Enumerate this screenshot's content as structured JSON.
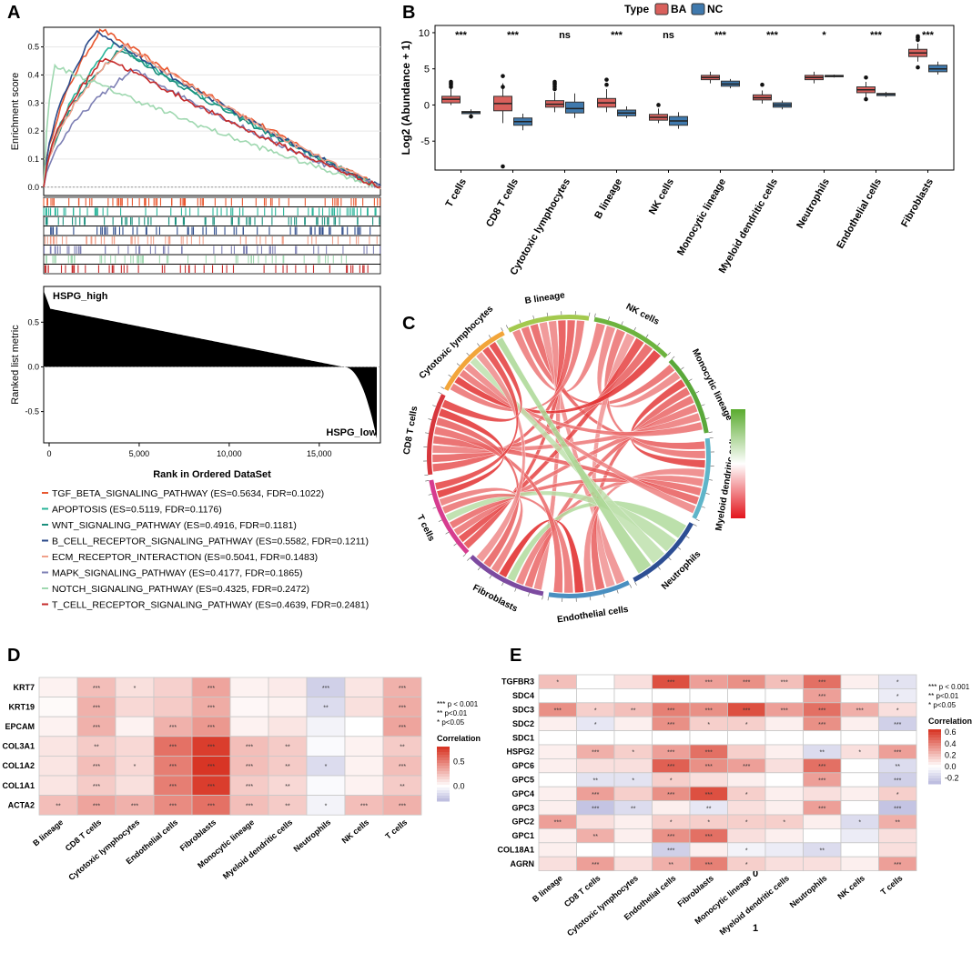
{
  "panels": {
    "A": "A",
    "B": "B",
    "C": "C",
    "D": "D",
    "E": "E"
  },
  "colors": {
    "BA": "#d9605c",
    "NC": "#3f79ad",
    "heat_high": "#d7301f",
    "heat_mid": "#ffffff",
    "heat_low": "#b8b8dd",
    "pathways": [
      "#e8572f",
      "#2ab59a",
      "#1a8f7c",
      "#2b4a8a",
      "#f0a08a",
      "#7d7fb4",
      "#9fd8b0",
      "#c62b2b"
    ]
  },
  "chart_data": [
    {
      "id": "A",
      "type": "line",
      "ylabel_top": "Enrichment score",
      "ylabel_bottom": "Ranked list metric",
      "xlabel": "Rank in Ordered DataSet",
      "x_ticks": [
        "0",
        "5,000",
        "10,000",
        "15,000"
      ],
      "x_tick_values": [
        0,
        5000,
        10000,
        15000
      ],
      "xlim": [
        0,
        18700
      ],
      "es_ticks": [
        "0.0",
        "0.1",
        "0.2",
        "0.3",
        "0.4",
        "0.5"
      ],
      "es_tick_values": [
        0,
        0.1,
        0.2,
        0.3,
        0.4,
        0.5
      ],
      "es_ylim": [
        -0.03,
        0.57
      ],
      "metric_ticks": [
        "0.5",
        "0.0",
        "-0.5"
      ],
      "metric_tick_values": [
        0.5,
        0.0,
        -0.5
      ],
      "metric_ylim": [
        -0.85,
        0.9
      ],
      "high_label": "HSPG_high",
      "low_label": "HSPG_low",
      "pathways": [
        {
          "label": "TGF_BETA_SIGNALING_PATHWAY (ES=0.5634, FDR=0.1022)",
          "peak": 0.5634,
          "peak_rank": 3200
        },
        {
          "label": "APOPTOSIS (ES=0.5119, FDR=0.1176)",
          "peak": 0.5119,
          "peak_rank": 3900
        },
        {
          "label": "WNT_SIGNALING_PATHWAY (ES=0.4916, FDR=0.1181)",
          "peak": 0.4916,
          "peak_rank": 4200
        },
        {
          "label": "B_CELL_RECEPTOR_SIGNALING_PATHWAY (ES=0.5582, FDR=0.1211)",
          "peak": 0.5582,
          "peak_rank": 2900
        },
        {
          "label": "ECM_RECEPTOR_INTERACTION (ES=0.5041, FDR=0.1483)",
          "peak": 0.5041,
          "peak_rank": 4500
        },
        {
          "label": "MAPK_SIGNALING_PATHWAY (ES=0.4177, FDR=0.1865)",
          "peak": 0.4177,
          "peak_rank": 5000
        },
        {
          "label": "NOTCH_SIGNALING_PATHWAY (ES=0.4325, FDR=0.2472)",
          "peak": 0.4325,
          "peak_rank": 600
        },
        {
          "label": "T_CELL_RECEPTOR_SIGNALING_PATHWAY (ES=0.4639, FDR=0.2481)",
          "peak": 0.4639,
          "peak_rank": 3400
        }
      ]
    },
    {
      "id": "B",
      "type": "box",
      "legend_title": "Type",
      "groups": [
        "BA",
        "NC"
      ],
      "ylabel": "Log2 (Abundance + 1)",
      "y_ticks": [
        "10",
        "5",
        "0",
        "-5"
      ],
      "y_tick_values": [
        10,
        5,
        0,
        -5
      ],
      "ylim": [
        -9,
        11
      ],
      "categories": [
        "T cells",
        "CD8 T cells",
        "Cytotoxic lymphocytes",
        "B lineage",
        "NK cells",
        "Monocytic lineage",
        "Myeloid dendritic cells",
        "Neutrophils",
        "Endothelial cells",
        "Fibroblasts"
      ],
      "significance": [
        "***",
        "***",
        "ns",
        "***",
        "ns",
        "***",
        "***",
        "*",
        "***",
        "***"
      ],
      "BA": [
        {
          "min": 0.0,
          "q1": 0.3,
          "med": 0.8,
          "q3": 1.2,
          "max": 2.2,
          "out": [
            2.5,
            2.8,
            3.0,
            3.2
          ]
        },
        {
          "min": -2.5,
          "q1": -0.8,
          "med": 0.2,
          "q3": 1.2,
          "max": 3.0,
          "out": [
            4.0,
            2.5,
            -8.5
          ]
        },
        {
          "min": -1.0,
          "q1": -0.3,
          "med": 0.1,
          "q3": 0.6,
          "max": 1.8,
          "out": [
            2.2,
            2.5,
            2.8,
            3.0,
            3.2
          ]
        },
        {
          "min": -1.0,
          "q1": -0.3,
          "med": 0.3,
          "q3": 0.9,
          "max": 2.2,
          "out": [
            2.8,
            3.5
          ]
        },
        {
          "min": -2.5,
          "q1": -2.1,
          "med": -1.7,
          "q3": -1.3,
          "max": -0.5,
          "out": [
            0.0
          ]
        },
        {
          "min": 3.0,
          "q1": 3.5,
          "med": 3.8,
          "q3": 4.1,
          "max": 4.6,
          "out": []
        },
        {
          "min": 0.2,
          "q1": 0.7,
          "med": 1.0,
          "q3": 1.4,
          "max": 2.0,
          "out": [
            2.8
          ]
        },
        {
          "min": 3.0,
          "q1": 3.5,
          "med": 3.8,
          "q3": 4.1,
          "max": 4.6,
          "out": []
        },
        {
          "min": 1.0,
          "q1": 1.7,
          "med": 2.1,
          "q3": 2.5,
          "max": 3.2,
          "out": [
            3.8,
            0.8
          ]
        },
        {
          "min": 6.0,
          "q1": 6.7,
          "med": 7.2,
          "q3": 7.7,
          "max": 8.5,
          "out": [
            9.0,
            9.3,
            9.5,
            5.2
          ]
        }
      ],
      "NC": [
        {
          "min": -1.4,
          "q1": -1.2,
          "med": -1.0,
          "q3": -0.9,
          "max": -0.6,
          "out": [
            -1.6
          ]
        },
        {
          "min": -3.5,
          "q1": -2.8,
          "med": -2.3,
          "q3": -1.8,
          "max": -1.2,
          "out": []
        },
        {
          "min": -1.8,
          "q1": -1.1,
          "med": -0.5,
          "q3": 0.4,
          "max": 1.6,
          "out": []
        },
        {
          "min": -1.8,
          "q1": -1.5,
          "med": -1.1,
          "q3": -0.7,
          "max": -0.2,
          "out": []
        },
        {
          "min": -3.3,
          "q1": -2.8,
          "med": -2.2,
          "q3": -1.6,
          "max": -1.0,
          "out": []
        },
        {
          "min": 2.3,
          "q1": 2.6,
          "med": 2.9,
          "q3": 3.3,
          "max": 3.6,
          "out": []
        },
        {
          "min": -0.6,
          "q1": -0.3,
          "med": 0.0,
          "q3": 0.3,
          "max": 0.6,
          "out": []
        },
        {
          "min": 3.8,
          "q1": 3.9,
          "med": 4.0,
          "q3": 4.1,
          "max": 4.2,
          "out": []
        },
        {
          "min": 1.1,
          "q1": 1.3,
          "med": 1.5,
          "q3": 1.6,
          "max": 1.8,
          "out": []
        },
        {
          "min": 4.2,
          "q1": 4.6,
          "med": 5.0,
          "q3": 5.5,
          "max": 6.0,
          "out": []
        }
      ]
    },
    {
      "id": "C",
      "type": "chord",
      "sectors": [
        "B lineage",
        "NK cells",
        "Monocytic lineage",
        "Myeloid dendritic cells",
        "Neutrophils",
        "Endothelial cells",
        "Fibroblasts",
        "T cells",
        "CD8 T cells",
        "Cytotoxic lymphocytes"
      ],
      "sector_colors": [
        "#a3c94e",
        "#6db33f",
        "#5aa83a",
        "#5fb5c9",
        "#2d4e93",
        "#4a8fc0",
        "#7c4aa0",
        "#d63c8f",
        "#d7373d",
        "#f2a53a"
      ],
      "legend_ticks": [
        "-1",
        "0",
        "1"
      ],
      "legend_tick_values": [
        -1,
        0,
        1
      ],
      "correlations": [
        {
          "from": 0,
          "to": 1,
          "r": 0.45
        },
        {
          "from": 0,
          "to": 2,
          "r": 0.55
        },
        {
          "from": 0,
          "to": 3,
          "r": 0.6
        },
        {
          "from": 0,
          "to": 5,
          "r": 0.35
        },
        {
          "from": 0,
          "to": 6,
          "r": 0.4
        },
        {
          "from": 0,
          "to": 7,
          "r": 0.7
        },
        {
          "from": 0,
          "to": 8,
          "r": 0.65
        },
        {
          "from": 0,
          "to": 9,
          "r": 0.5
        },
        {
          "from": 1,
          "to": 2,
          "r": 0.4
        },
        {
          "from": 1,
          "to": 3,
          "r": 0.5
        },
        {
          "from": 1,
          "to": 5,
          "r": 0.3
        },
        {
          "from": 1,
          "to": 7,
          "r": 0.75
        },
        {
          "from": 1,
          "to": 8,
          "r": 0.6
        },
        {
          "from": 1,
          "to": 9,
          "r": 0.85
        },
        {
          "from": 2,
          "to": 3,
          "r": 0.8
        },
        {
          "from": 2,
          "to": 5,
          "r": 0.6
        },
        {
          "from": 2,
          "to": 6,
          "r": 0.55
        },
        {
          "from": 2,
          "to": 7,
          "r": 0.5
        },
        {
          "from": 2,
          "to": 8,
          "r": 0.45
        },
        {
          "from": 2,
          "to": 9,
          "r": 0.5
        },
        {
          "from": 3,
          "to": 5,
          "r": 0.4
        },
        {
          "from": 3,
          "to": 6,
          "r": 0.45
        },
        {
          "from": 3,
          "to": 7,
          "r": 0.55
        },
        {
          "from": 3,
          "to": 8,
          "r": 0.6
        },
        {
          "from": 3,
          "to": 9,
          "r": 0.4
        },
        {
          "from": 4,
          "to": 6,
          "r": -0.3
        },
        {
          "from": 4,
          "to": 7,
          "r": -0.25
        },
        {
          "from": 4,
          "to": 9,
          "r": -0.2
        },
        {
          "from": 5,
          "to": 6,
          "r": 0.9
        },
        {
          "from": 5,
          "to": 7,
          "r": 0.5
        },
        {
          "from": 5,
          "to": 8,
          "r": 0.55
        },
        {
          "from": 6,
          "to": 7,
          "r": 0.45
        },
        {
          "from": 6,
          "to": 8,
          "r": 0.6
        },
        {
          "from": 6,
          "to": 9,
          "r": 0.35
        },
        {
          "from": 7,
          "to": 8,
          "r": 0.85
        },
        {
          "from": 7,
          "to": 9,
          "r": 0.75
        },
        {
          "from": 8,
          "to": 9,
          "r": 0.8
        },
        {
          "from": 9,
          "to": 4,
          "r": -0.35
        }
      ]
    },
    {
      "id": "D",
      "type": "heatmap",
      "rows": [
        "KRT7",
        "KRT19",
        "EPCAM",
        "COL3A1",
        "COL1A2",
        "COL1A1",
        "ACTA2"
      ],
      "cols": [
        "B lineage",
        "CD8 T cells",
        "Cytotoxic lymphocytes",
        "Endothelial cells",
        "Fibroblasts",
        "Monocytic lineage",
        "Myeloid dendritic cells",
        "Neutrophils",
        "NK cells",
        "T cells"
      ],
      "values": [
        [
          0.05,
          0.25,
          0.12,
          0.18,
          0.35,
          0.05,
          0.08,
          -0.2,
          0.1,
          0.3
        ],
        [
          0.02,
          0.3,
          0.15,
          0.2,
          0.32,
          0.03,
          0.05,
          -0.15,
          0.12,
          0.32
        ],
        [
          0.05,
          0.3,
          0.05,
          0.3,
          0.4,
          0.05,
          0.1,
          -0.05,
          0.0,
          0.35
        ],
        [
          0.1,
          0.2,
          0.15,
          0.55,
          0.75,
          0.25,
          0.2,
          -0.02,
          0.05,
          0.2
        ],
        [
          0.1,
          0.25,
          0.15,
          0.5,
          0.78,
          0.25,
          0.2,
          -0.15,
          0.05,
          0.25
        ],
        [
          0.1,
          0.2,
          0.12,
          0.5,
          0.75,
          0.2,
          0.15,
          -0.02,
          0.05,
          0.2
        ],
        [
          0.25,
          0.35,
          0.3,
          0.45,
          0.55,
          0.25,
          0.2,
          -0.05,
          0.25,
          0.3
        ]
      ],
      "stars": [
        [
          "",
          "***",
          "*",
          "",
          "***",
          "",
          "",
          "***",
          "",
          "***"
        ],
        [
          "",
          "***",
          "",
          "",
          "***",
          "",
          "",
          "**",
          "",
          "***"
        ],
        [
          "",
          "***",
          "",
          "***",
          "***",
          "",
          "",
          "",
          "",
          "***"
        ],
        [
          "",
          "**",
          "",
          "***",
          "***",
          "***",
          "**",
          "",
          "",
          "**"
        ],
        [
          "",
          "***",
          "*",
          "***",
          "***",
          "***",
          "**",
          "*",
          "",
          "***"
        ],
        [
          "",
          "***",
          "",
          "***",
          "***",
          "***",
          "**",
          "",
          "",
          "**"
        ],
        [
          "**",
          "***",
          "***",
          "***",
          "***",
          "***",
          "**",
          "*",
          "***",
          "***"
        ]
      ],
      "sig_legend": [
        "*** p < 0.001",
        "** p<0.01",
        "* p<0.05"
      ],
      "legend_title": "Correlation",
      "legend_ticks": [
        "0.5",
        "0.0"
      ],
      "legend_tick_values": [
        0.5,
        0.0
      ],
      "vlim": [
        -0.3,
        0.8
      ]
    },
    {
      "id": "E",
      "type": "heatmap",
      "rows": [
        "TGFBR3",
        "SDC4",
        "SDC3",
        "SDC2",
        "SDC1",
        "HSPG2",
        "GPC6",
        "GPC5",
        "GPC4",
        "GPC3",
        "GPC2",
        "GPC1",
        "COL18A1",
        "AGRN"
      ],
      "cols": [
        "B lineage",
        "CD8 T cells",
        "Cytotoxic lymphocytes",
        "Endothelial cells",
        "Fibroblasts",
        "Monocytic lineage",
        "Myeloid dendritic cells",
        "Neutrophils",
        "NK cells",
        "T cells"
      ],
      "values": [
        [
          0.2,
          0.0,
          0.1,
          0.55,
          0.3,
          0.35,
          0.2,
          0.45,
          0.05,
          -0.12
        ],
        [
          0.0,
          0.0,
          0.0,
          0.0,
          0.0,
          0.0,
          0.0,
          0.3,
          0.0,
          -0.08
        ],
        [
          0.35,
          0.15,
          0.2,
          0.4,
          0.35,
          0.55,
          0.3,
          0.45,
          0.25,
          0.1
        ],
        [
          0.05,
          -0.1,
          0.05,
          0.35,
          0.15,
          0.15,
          0.05,
          0.35,
          0.05,
          -0.2
        ],
        [
          0.0,
          0.0,
          0.0,
          0.0,
          0.0,
          0.0,
          0.0,
          0.0,
          0.0,
          0.0
        ],
        [
          0.05,
          0.25,
          0.15,
          0.3,
          0.45,
          0.15,
          0.05,
          -0.15,
          0.1,
          0.3
        ],
        [
          0.05,
          0.1,
          0.1,
          0.5,
          0.35,
          0.3,
          0.1,
          0.45,
          0.0,
          -0.15
        ],
        [
          0.0,
          -0.12,
          -0.12,
          0.15,
          0.1,
          0.05,
          0.0,
          0.3,
          0.0,
          -0.2
        ],
        [
          0.05,
          0.3,
          0.15,
          0.35,
          0.55,
          0.15,
          0.05,
          0.1,
          0.05,
          0.15
        ],
        [
          0.05,
          -0.25,
          -0.15,
          0.05,
          -0.1,
          0.1,
          0.05,
          0.3,
          0.0,
          -0.25
        ],
        [
          0.3,
          0.1,
          0.05,
          0.15,
          0.15,
          0.15,
          0.15,
          0.05,
          -0.15,
          0.25
        ],
        [
          0.05,
          0.25,
          0.05,
          0.35,
          0.45,
          0.1,
          0.05,
          0.0,
          -0.08,
          0.1
        ],
        [
          0.05,
          0.0,
          0.0,
          -0.2,
          0.05,
          -0.05,
          -0.08,
          -0.15,
          0.0,
          0.1
        ],
        [
          0.1,
          0.3,
          0.1,
          0.25,
          0.4,
          0.15,
          0.1,
          0.1,
          0.05,
          0.3
        ]
      ],
      "stars": [
        [
          "*",
          "",
          "",
          "***",
          "***",
          "***",
          "***",
          "***",
          "",
          "*"
        ],
        [
          "",
          "",
          "",
          "",
          "",
          "",
          "",
          "***",
          "",
          "*"
        ],
        [
          "***",
          "*",
          "**",
          "***",
          "***",
          "***",
          "***",
          "***",
          "***",
          "*"
        ],
        [
          "",
          "*",
          "",
          "***",
          "*",
          "*",
          "",
          "***",
          "",
          "***"
        ],
        [
          "",
          "",
          "",
          "",
          "",
          "",
          "",
          "",
          "",
          ""
        ],
        [
          "",
          "***",
          "*",
          "***",
          "***",
          "",
          "",
          "**",
          "*",
          "***"
        ],
        [
          "",
          "",
          "",
          "***",
          "***",
          "***",
          "",
          "***",
          "",
          "**"
        ],
        [
          "",
          "**",
          "*",
          "*",
          "",
          "",
          "",
          "***",
          "",
          "***"
        ],
        [
          "",
          "***",
          "",
          "***",
          "***",
          "*",
          "",
          "",
          "",
          "*"
        ],
        [
          "",
          "***",
          "**",
          "",
          "**",
          "",
          "",
          "***",
          "",
          "***"
        ],
        [
          "***",
          "",
          "",
          "*",
          "*",
          "*",
          "*",
          "",
          "*",
          "**"
        ],
        [
          "",
          "**",
          "",
          "***",
          "***",
          "",
          "",
          "",
          "",
          ""
        ],
        [
          "",
          "",
          "",
          "***",
          "",
          "*",
          "",
          "**",
          "",
          ""
        ],
        [
          "",
          "***",
          "",
          "**",
          "***",
          "*",
          "",
          "",
          "",
          "***"
        ]
      ],
      "sig_legend": [
        "*** p < 0.001",
        "** p<0.01",
        "* p<0.05"
      ],
      "legend_title": "Correlation",
      "legend_ticks": [
        "0.6",
        "0.4",
        "0.2",
        "0.0",
        "-0.2"
      ],
      "legend_tick_values": [
        0.6,
        0.4,
        0.2,
        0.0,
        -0.2
      ],
      "vlim": [
        -0.3,
        0.65
      ]
    }
  ]
}
